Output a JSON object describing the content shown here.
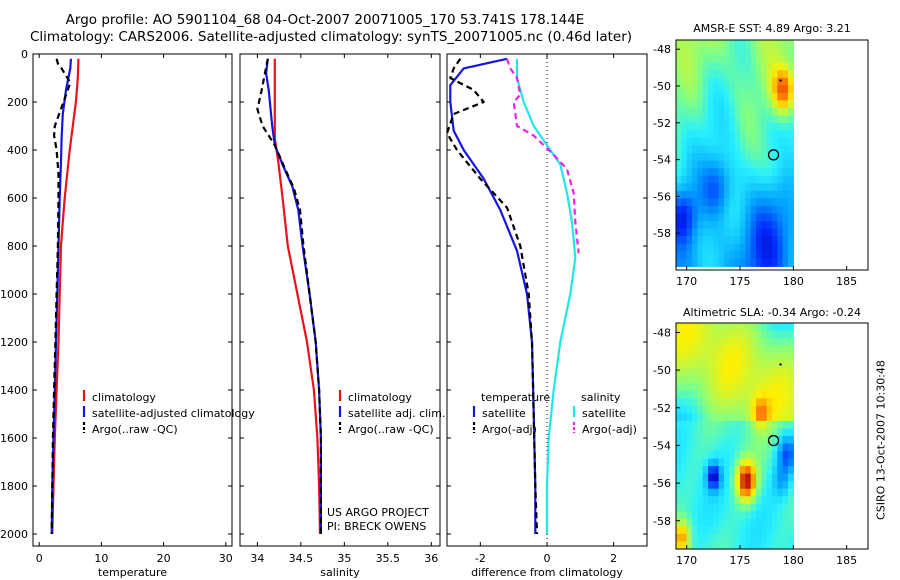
{
  "header": {
    "title_line1": "Argo profile: AO 5901104_68 04-Oct-2007 20071005_170 53.741S 178.144E",
    "title_line2": "Climatology: CARS2006. Satellite-adjusted climatology: synTS_20071005.nc (0.46d later)"
  },
  "credit": "CSIRO 13-Oct-2007 10:30:48",
  "colors": {
    "red": "#e8141a",
    "blue": "#1515e0",
    "black": "#000000",
    "cyan": "#22e6e6",
    "magenta": "#ee22ee"
  },
  "depth_ticks": [
    "0",
    "200",
    "400",
    "600",
    "800",
    "1000",
    "1200",
    "1400",
    "1600",
    "1800",
    "2000"
  ],
  "chart_data": [
    {
      "type": "line",
      "panel": "temperature",
      "xlabel": "temperature",
      "xlim": [
        -1,
        31
      ],
      "ylim": [
        0,
        2050
      ],
      "y_inverted": true,
      "xticks": [
        "0",
        "10",
        "20",
        "30"
      ],
      "legend": [
        "climatology",
        "satellite-adjusted climatology",
        "Argo(..raw -QC)"
      ],
      "series": [
        {
          "name": "climatology",
          "color": "red",
          "dash": false,
          "points": [
            [
              6.3,
              20
            ],
            [
              6.2,
              100
            ],
            [
              5.9,
              200
            ],
            [
              5.4,
              300
            ],
            [
              4.9,
              400
            ],
            [
              4.5,
              500
            ],
            [
              4.1,
              600
            ],
            [
              3.8,
              700
            ],
            [
              3.5,
              800
            ],
            [
              3.3,
              1000
            ],
            [
              3.1,
              1200
            ],
            [
              2.8,
              1400
            ],
            [
              2.5,
              1600
            ],
            [
              2.3,
              1800
            ],
            [
              2.1,
              2000
            ]
          ]
        },
        {
          "name": "satellite-adjusted climatology",
          "color": "blue",
          "dash": false,
          "points": [
            [
              5.1,
              20
            ],
            [
              5.0,
              60
            ],
            [
              4.3,
              150
            ],
            [
              3.8,
              250
            ],
            [
              3.6,
              350
            ],
            [
              3.5,
              450
            ],
            [
              3.3,
              600
            ],
            [
              3.1,
              800
            ],
            [
              2.9,
              1000
            ],
            [
              2.7,
              1200
            ],
            [
              2.5,
              1400
            ],
            [
              2.3,
              1600
            ],
            [
              2.1,
              1800
            ],
            [
              2.0,
              2000
            ]
          ]
        },
        {
          "name": "Argo(..raw -QC)",
          "color": "black",
          "dash": true,
          "points": [
            [
              2.8,
              20
            ],
            [
              3.0,
              40
            ],
            [
              3.6,
              60
            ],
            [
              5.0,
              120
            ],
            [
              3.9,
              200
            ],
            [
              2.5,
              300
            ],
            [
              2.4,
              340
            ],
            [
              2.8,
              400
            ],
            [
              3.1,
              500
            ],
            [
              3.1,
              600
            ],
            [
              3.0,
              800
            ],
            [
              2.8,
              1000
            ],
            [
              2.6,
              1200
            ],
            [
              2.4,
              1400
            ],
            [
              2.2,
              1600
            ],
            [
              2.1,
              1800
            ],
            [
              2.0,
              2000
            ]
          ]
        }
      ]
    },
    {
      "type": "line",
      "panel": "salinity",
      "xlabel": "salinity",
      "xlim": [
        33.8,
        36.1
      ],
      "ylim": [
        0,
        2050
      ],
      "y_inverted": true,
      "xticks": [
        "34",
        "34.5",
        "35",
        "35.5",
        "36"
      ],
      "legend": [
        "climatology",
        "satellite adj. clim.",
        "Argo(..raw -QC)"
      ],
      "annotation": [
        "US ARGO PROJECT",
        "PI: BRECK OWENS"
      ],
      "series": [
        {
          "name": "climatology",
          "color": "red",
          "dash": false,
          "points": [
            [
              34.2,
              20
            ],
            [
              34.2,
              200
            ],
            [
              34.2,
              350
            ],
            [
              34.24,
              450
            ],
            [
              34.29,
              600
            ],
            [
              34.35,
              800
            ],
            [
              34.46,
              1000
            ],
            [
              34.57,
              1200
            ],
            [
              34.65,
              1400
            ],
            [
              34.69,
              1600
            ],
            [
              34.71,
              1800
            ],
            [
              34.72,
              2000
            ]
          ]
        },
        {
          "name": "satellite adj. clim.",
          "color": "blue",
          "dash": false,
          "points": [
            [
              34.12,
              20
            ],
            [
              34.1,
              80
            ],
            [
              34.13,
              150
            ],
            [
              34.17,
              300
            ],
            [
              34.2,
              380
            ],
            [
              34.3,
              470
            ],
            [
              34.4,
              550
            ],
            [
              34.47,
              650
            ],
            [
              34.52,
              800
            ],
            [
              34.6,
              1000
            ],
            [
              34.67,
              1200
            ],
            [
              34.71,
              1400
            ],
            [
              34.73,
              1600
            ],
            [
              34.73,
              1800
            ],
            [
              34.73,
              2000
            ]
          ]
        },
        {
          "name": "Argo(..raw -QC)",
          "color": "black",
          "dash": true,
          "points": [
            [
              34.12,
              20
            ],
            [
              34.05,
              150
            ],
            [
              34.0,
              230
            ],
            [
              34.06,
              300
            ],
            [
              34.2,
              380
            ],
            [
              34.32,
              480
            ],
            [
              34.42,
              560
            ],
            [
              34.49,
              650
            ],
            [
              34.53,
              800
            ],
            [
              34.6,
              1000
            ],
            [
              34.67,
              1200
            ],
            [
              34.71,
              1400
            ],
            [
              34.73,
              1600
            ],
            [
              34.73,
              1800
            ],
            [
              34.73,
              2000
            ]
          ]
        }
      ]
    },
    {
      "type": "line",
      "panel": "difference",
      "xlabel": "difference from climatology",
      "xlim": [
        -3,
        3
      ],
      "ylim": [
        0,
        2050
      ],
      "y_inverted": true,
      "xticks": [
        "-2",
        "0",
        "2"
      ],
      "zero_line": 0,
      "legend_left_title": "temperature",
      "legend_left": [
        "satellite",
        "Argo(-adj)"
      ],
      "legend_right_title": "salinity",
      "legend_right": [
        "satellite",
        "Argo(-adj)"
      ],
      "series": [
        {
          "name": "temperature satellite",
          "color": "blue",
          "dash": false,
          "points": [
            [
              -1.2,
              20
            ],
            [
              -2.5,
              60
            ],
            [
              -2.9,
              130
            ],
            [
              -2.9,
              200
            ],
            [
              -2.8,
              320
            ],
            [
              -2.5,
              400
            ],
            [
              -1.9,
              520
            ],
            [
              -1.4,
              650
            ],
            [
              -0.9,
              820
            ],
            [
              -0.6,
              1000
            ],
            [
              -0.45,
              1200
            ],
            [
              -0.4,
              1500
            ],
            [
              -0.35,
              1800
            ],
            [
              -0.35,
              2000
            ]
          ]
        },
        {
          "name": "temperature Argo(-adj)",
          "color": "black",
          "dash": true,
          "points": [
            [
              -2.6,
              20
            ],
            [
              -2.8,
              60
            ],
            [
              -2.9,
              100
            ],
            [
              -2.2,
              150
            ],
            [
              -1.9,
              200
            ],
            [
              -2.8,
              250
            ],
            [
              -3.0,
              330
            ],
            [
              -2.7,
              400
            ],
            [
              -2.0,
              520
            ],
            [
              -1.2,
              640
            ],
            [
              -0.8,
              800
            ],
            [
              -0.55,
              1000
            ],
            [
              -0.45,
              1200
            ],
            [
              -0.4,
              1500
            ],
            [
              -0.35,
              1800
            ],
            [
              -0.3,
              2000
            ]
          ]
        },
        {
          "name": "salinity satellite",
          "color": "cyan",
          "dash": false,
          "points": [
            [
              -0.9,
              20
            ],
            [
              -0.9,
              100
            ],
            [
              -0.7,
              200
            ],
            [
              -0.4,
              300
            ],
            [
              0,
              380
            ],
            [
              0.4,
              460
            ],
            [
              0.6,
              580
            ],
            [
              0.75,
              700
            ],
            [
              0.85,
              850
            ],
            [
              0.7,
              1000
            ],
            [
              0.4,
              1200
            ],
            [
              0.2,
              1400
            ],
            [
              0.05,
              1600
            ],
            [
              0,
              1800
            ],
            [
              0,
              2000
            ]
          ]
        },
        {
          "name": "salinity Argo(-adj)",
          "color": "magenta",
          "dash": true,
          "points": [
            [
              -1.2,
              20
            ],
            [
              -1.1,
              60
            ],
            [
              -0.9,
              100
            ],
            [
              -0.8,
              170
            ],
            [
              -1.0,
              200
            ],
            [
              -0.9,
              300
            ],
            [
              -0.4,
              340
            ],
            [
              0.2,
              420
            ],
            [
              0.6,
              480
            ],
            [
              0.8,
              580
            ],
            [
              0.85,
              700
            ],
            [
              0.95,
              830
            ]
          ]
        }
      ]
    },
    {
      "type": "heatmap",
      "panel": "sst_map",
      "title": "AMSR-E SST: 4.89  Argo: 3.21",
      "xlim": [
        169,
        187
      ],
      "ylim": [
        -60,
        -47.5
      ],
      "xticks": [
        "170",
        "175",
        "180",
        "185"
      ],
      "yticks": [
        "-48",
        "-50",
        "-52",
        "-54",
        "-56",
        "-58"
      ],
      "data_lon_range": [
        169,
        180
      ],
      "data_lat_range": [
        -59.8,
        -47.5
      ],
      "profile_position": [
        178.144,
        -53.741
      ]
    },
    {
      "type": "heatmap",
      "panel": "sla_map",
      "title": "Altimetric SLA: -0.34  Argo: -0.24",
      "xlim": [
        169,
        187
      ],
      "ylim": [
        -59.5,
        -47.5
      ],
      "xticks": [
        "170",
        "175",
        "180",
        "185"
      ],
      "yticks": [
        "-48",
        "-50",
        "-52",
        "-54",
        "-56",
        "-58"
      ],
      "data_lon_range": [
        169,
        180
      ],
      "data_lat_range": [
        -59.5,
        -47.5
      ],
      "profile_position": [
        178.144,
        -53.741
      ]
    }
  ]
}
